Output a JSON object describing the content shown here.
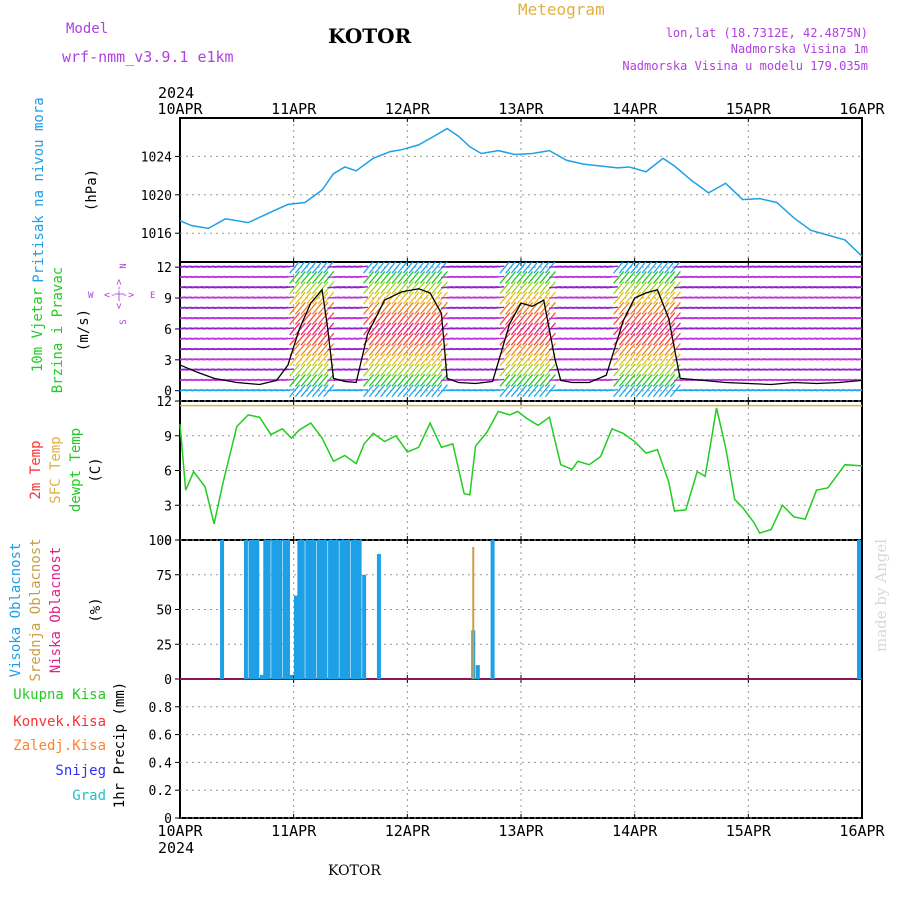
{
  "header": {
    "model_label": "Model",
    "model_name": "wrf-nmm_v3.9.1 e1km",
    "title": "KOTOR",
    "meteogram_label": "Meteogram",
    "lonlat": "lon,lat (18.7312E, 42.4875N)",
    "elevation": "Nadmorska Visina 1m",
    "model_elevation": "Nadmorska Visina u modelu 179.035m",
    "footer_title": "KOTOR",
    "watermark": "made by Angel"
  },
  "colors": {
    "pressure": "#1ea0e6",
    "temp2m": "#ff3030",
    "sfc_temp": "#e0b040",
    "dewpt": "#22cc22",
    "cloud_high": "#1ea0e6",
    "cloud_mid": "#c8a040",
    "cloud_low": "#e0208c",
    "wind_label": "#22cc22",
    "precip_total": "#22cc22",
    "precip_conv": "#ff3030",
    "precip_frozen": "#ff8030",
    "precip_snow": "#3030ff",
    "precip_hail": "#20c0c0",
    "model_text": "#b040e0"
  },
  "chart_data": [
    {
      "type": "line",
      "panel": "pressure",
      "ylabel_main": "Pritisak na nivou mora",
      "ylabel_unit": "(hPa)",
      "x_ticks": [
        "10APR",
        "11APR",
        "12APR",
        "13APR",
        "14APR",
        "15APR",
        "16APR"
      ],
      "x_year": "2024",
      "ylim": [
        1013,
        1028
      ],
      "y_ticks": [
        "1016",
        "1020",
        "1024"
      ],
      "grid": true,
      "x_days": [
        0.0,
        0.1,
        0.25,
        0.4,
        0.6,
        0.8,
        0.95,
        1.1,
        1.25,
        1.35,
        1.45,
        1.55,
        1.7,
        1.85,
        1.95,
        2.1,
        2.25,
        2.35,
        2.45,
        2.55,
        2.65,
        2.8,
        2.95,
        3.1,
        3.25,
        3.4,
        3.55,
        3.7,
        3.85,
        3.95,
        4.1,
        4.25,
        4.35,
        4.5,
        4.65,
        4.8,
        4.95,
        5.1,
        5.25,
        5.4,
        5.55,
        5.7,
        5.85,
        6.0
      ],
      "values": [
        1017.3,
        1016.8,
        1016.5,
        1017.5,
        1017.1,
        1018.2,
        1019.0,
        1019.2,
        1020.5,
        1022.2,
        1022.9,
        1022.5,
        1023.8,
        1024.5,
        1024.7,
        1025.2,
        1026.2,
        1026.9,
        1026.1,
        1025.0,
        1024.3,
        1024.6,
        1024.2,
        1024.3,
        1024.6,
        1023.6,
        1023.2,
        1023.0,
        1022.8,
        1022.9,
        1022.4,
        1023.8,
        1023.0,
        1021.5,
        1020.2,
        1021.2,
        1019.5,
        1019.6,
        1019.2,
        1017.6,
        1016.3,
        1015.8,
        1015.3,
        1013.6
      ],
      "series_name": "Pritisak na nivou mora"
    },
    {
      "type": "line",
      "panel": "wind",
      "ylabel_main": "10m Vjetar",
      "ylabel_sub": "Brzina i Pravac",
      "ylabel_unit": "(m/s)",
      "compass": {
        "n": "N",
        "e": "E",
        "w": "W",
        "s": "S",
        "arrows": "<-|->",
        "up": "^",
        "down": "v"
      },
      "ylim": [
        -1,
        12.5
      ],
      "y_ticks": [
        "0",
        "3",
        "6",
        "9",
        "12"
      ],
      "x_days": [
        0.0,
        0.15,
        0.3,
        0.5,
        0.7,
        0.85,
        0.95,
        1.05,
        1.15,
        1.25,
        1.3,
        1.35,
        1.45,
        1.55,
        1.65,
        1.8,
        1.95,
        2.1,
        2.2,
        2.3,
        2.35,
        2.45,
        2.6,
        2.75,
        2.9,
        3.0,
        3.1,
        3.2,
        3.3,
        3.35,
        3.45,
        3.6,
        3.75,
        3.9,
        4.0,
        4.1,
        4.2,
        4.3,
        4.4,
        4.6,
        4.8,
        5.0,
        5.2,
        5.4,
        5.6,
        5.8,
        6.0
      ],
      "values": [
        2.5,
        1.8,
        1.2,
        0.8,
        0.6,
        1.0,
        2.5,
        6.0,
        8.5,
        9.8,
        6.0,
        1.2,
        0.9,
        0.8,
        5.5,
        8.8,
        9.6,
        9.9,
        9.5,
        7.5,
        1.2,
        0.8,
        0.7,
        0.9,
        6.5,
        8.5,
        8.2,
        8.8,
        3.0,
        1.0,
        0.8,
        0.8,
        1.5,
        6.8,
        9.0,
        9.5,
        9.8,
        7.0,
        1.2,
        1.0,
        0.8,
        0.7,
        0.6,
        0.8,
        0.7,
        0.8,
        1.0
      ],
      "series_name": "Brzina"
    },
    {
      "type": "line",
      "panel": "temperature",
      "ylabel_lines": [
        "2m Temp",
        "SFC Temp",
        "dewpt Temp"
      ],
      "ylabel_unit": "(C)",
      "ylim": [
        0,
        12
      ],
      "y_ticks": [
        "0",
        "3",
        "6",
        "9",
        "12"
      ],
      "sfc_temp_level": 11.6,
      "x_days": [
        0.0,
        0.05,
        0.12,
        0.22,
        0.3,
        0.38,
        0.5,
        0.6,
        0.7,
        0.8,
        0.9,
        0.98,
        1.05,
        1.15,
        1.25,
        1.35,
        1.45,
        1.55,
        1.62,
        1.7,
        1.8,
        1.9,
        2.0,
        2.1,
        2.2,
        2.3,
        2.4,
        2.5,
        2.55,
        2.6,
        2.7,
        2.8,
        2.9,
        2.97,
        3.05,
        3.15,
        3.25,
        3.35,
        3.45,
        3.5,
        3.6,
        3.7,
        3.8,
        3.9,
        4.0,
        4.1,
        4.2,
        4.3,
        4.35,
        4.45,
        4.55,
        4.62,
        4.68,
        4.72,
        4.8,
        4.88,
        4.95,
        5.05,
        5.1,
        5.2,
        5.3,
        5.4,
        5.5,
        5.6,
        5.7,
        5.85,
        6.0
      ],
      "values": [
        10.0,
        4.3,
        5.9,
        4.6,
        1.4,
        5.0,
        9.8,
        10.8,
        10.6,
        9.1,
        9.6,
        8.8,
        9.5,
        10.1,
        8.8,
        6.8,
        7.3,
        6.6,
        8.3,
        9.2,
        8.5,
        9.0,
        7.6,
        8.0,
        10.1,
        8.0,
        8.3,
        4.0,
        3.9,
        8.1,
        9.3,
        11.1,
        10.8,
        11.1,
        10.5,
        9.9,
        10.6,
        6.5,
        6.1,
        6.8,
        6.5,
        7.2,
        9.6,
        9.2,
        8.5,
        7.5,
        7.8,
        5.0,
        2.5,
        2.6,
        5.9,
        5.5,
        9.0,
        11.4,
        8.0,
        3.5,
        2.8,
        1.5,
        0.6,
        0.9,
        3.0,
        2.0,
        1.8,
        4.3,
        4.5,
        6.5,
        6.4
      ],
      "series_name": "dewpt Temp"
    },
    {
      "type": "bar",
      "panel": "cloud",
      "ylabel_lines": [
        "Visoka Oblacnost",
        "Srednja Oblacnost",
        "Niska Oblacnost"
      ],
      "ylabel_unit": "(%)",
      "ylim": [
        0,
        100
      ],
      "y_ticks": [
        "0",
        "25",
        "50",
        "75",
        "100"
      ],
      "high_x": [
        0.37,
        0.58,
        0.62,
        0.65,
        0.68,
        0.72,
        0.75,
        0.78,
        0.82,
        0.85,
        0.88,
        0.92,
        0.95,
        0.98,
        1.02,
        1.05,
        1.08,
        1.12,
        1.15,
        1.18,
        1.22,
        1.25,
        1.28,
        1.32,
        1.35,
        1.38,
        1.42,
        1.45,
        1.48,
        1.52,
        1.55,
        1.58,
        1.62,
        1.75,
        2.58,
        2.62,
        2.75,
        6.0
      ],
      "high_values": [
        100,
        100,
        100,
        100,
        100,
        3,
        100,
        100,
        100,
        100,
        100,
        100,
        100,
        3,
        60,
        100,
        100,
        100,
        100,
        100,
        100,
        100,
        100,
        100,
        100,
        100,
        100,
        100,
        100,
        100,
        100,
        100,
        75,
        90,
        35,
        10,
        100,
        100
      ],
      "mid_x": [
        2.58
      ],
      "mid_values": [
        95
      ]
    },
    {
      "type": "line",
      "panel": "precip",
      "ylabel_lines": [
        "Ukupna Kisa",
        "Konvek.Kisa",
        "Zaledj.Kisa",
        "Snijeg",
        "Grad"
      ],
      "ylabel_unit": "1hr Precip (mm)",
      "ylim": [
        0,
        1.0
      ],
      "y_ticks": [
        "0",
        "0.2",
        "0.4",
        "0.6",
        "0.8"
      ],
      "x_days": [
        0,
        6
      ],
      "values": [
        0,
        0
      ]
    }
  ]
}
